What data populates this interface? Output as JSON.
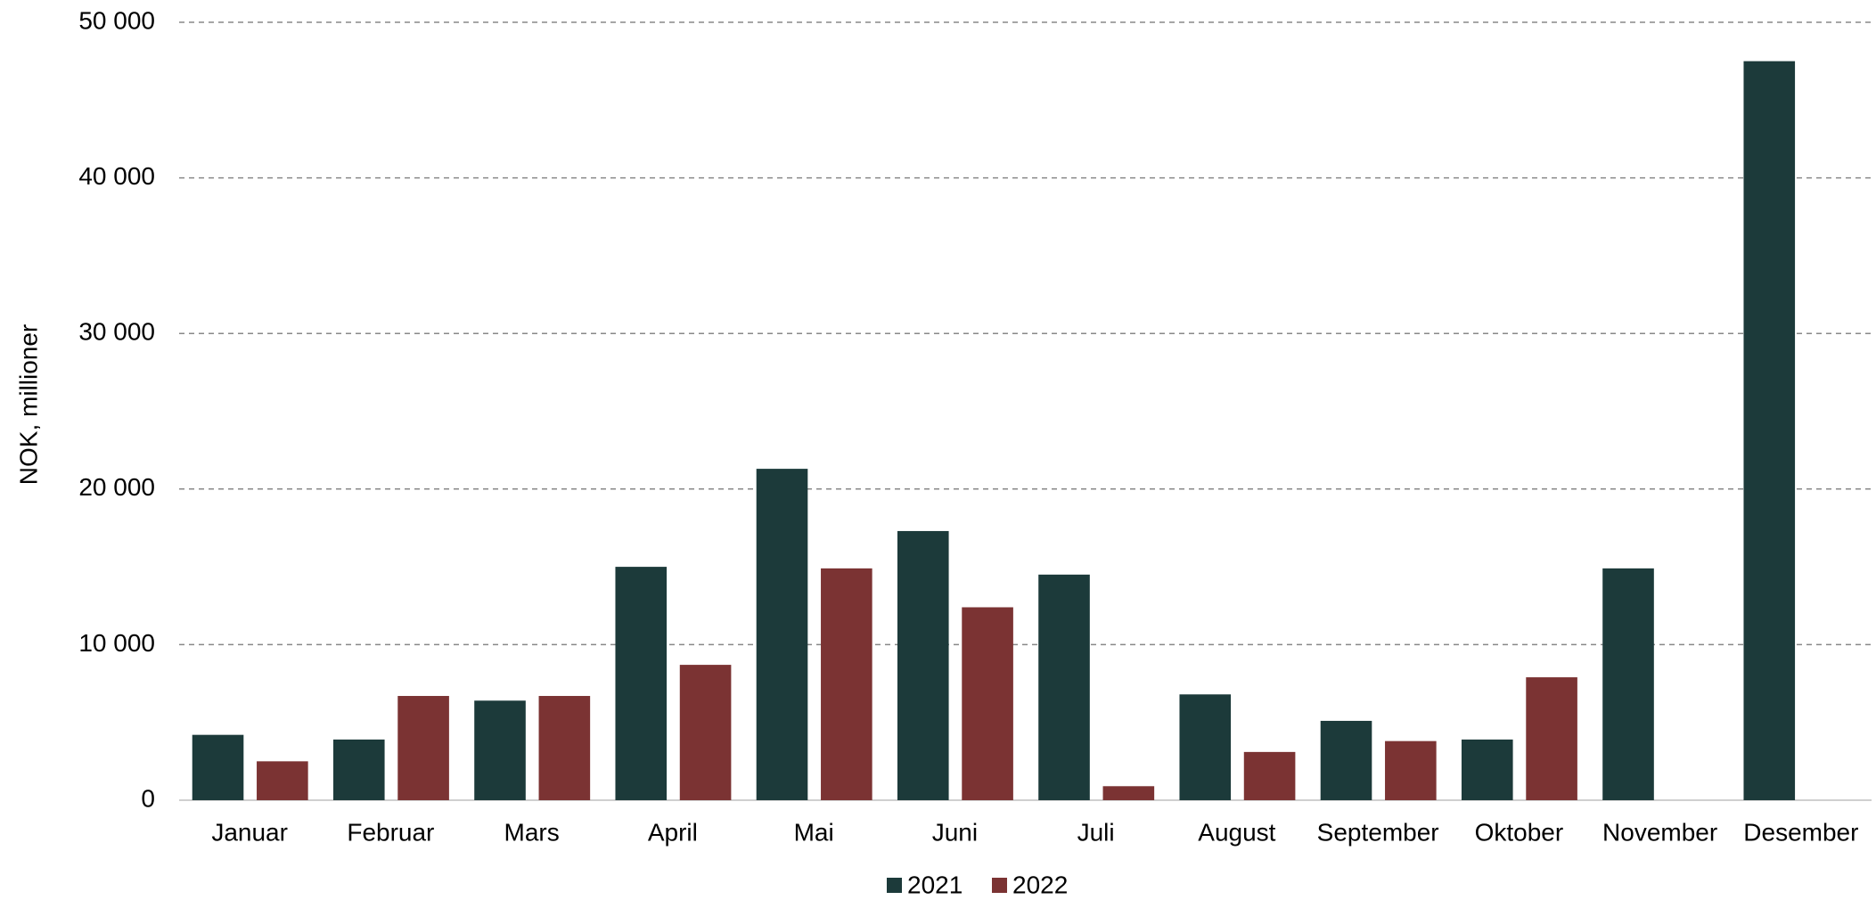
{
  "chart_data": {
    "type": "bar",
    "ylabel": "NOK, millioner",
    "categories": [
      "Januar",
      "Februar",
      "Mars",
      "April",
      "Mai",
      "Juni",
      "Juli",
      "August",
      "September",
      "Oktober",
      "November",
      "Desember"
    ],
    "series": [
      {
        "name": "2021",
        "color": "#1c3a3a",
        "values": [
          4200,
          3900,
          6400,
          15000,
          21300,
          17300,
          14500,
          6800,
          5100,
          3900,
          14900,
          47500
        ]
      },
      {
        "name": "2022",
        "color": "#7b3333",
        "values": [
          2500,
          6700,
          6700,
          8700,
          14900,
          12400,
          900,
          3100,
          3800,
          7900,
          null,
          null
        ]
      }
    ],
    "ylim": [
      0,
      50000
    ],
    "yticks": [
      0,
      {
        "value": 10000,
        "label": "10 000"
      },
      {
        "value": 20000,
        "label": "20 000"
      },
      {
        "value": 30000,
        "label": "30 000"
      },
      {
        "value": 40000,
        "label": "40 000"
      },
      {
        "value": 50000,
        "label": "50 000"
      }
    ],
    "grid": true,
    "legend": "bottom"
  }
}
